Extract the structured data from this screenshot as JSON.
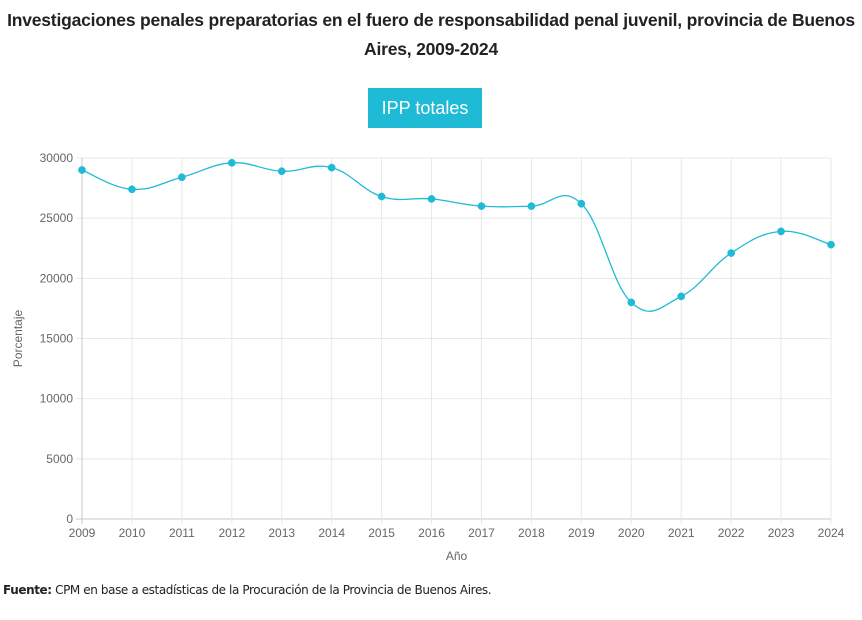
{
  "title": "Investigaciones penales preparatorias en el fuero de responsabilidad penal juvenil, provincia de Buenos Aires, 2009-2024",
  "legend": {
    "label": "IPP totales"
  },
  "footer": {
    "label": "Fuente:",
    "text": " CPM en base a estadísticas de la Procuración de la Provincia de Buenos Aires."
  },
  "chart_data": {
    "type": "line",
    "title": "Investigaciones penales preparatorias en el fuero de responsabilidad penal juvenil, provincia de Buenos Aires, 2009-2024",
    "xlabel": "Año",
    "ylabel": "Porcentaje",
    "categories": [
      "2009",
      "2010",
      "2011",
      "2012",
      "2013",
      "2014",
      "2015",
      "2016",
      "2017",
      "2018",
      "2019",
      "2020",
      "2021",
      "2022",
      "2023",
      "2024"
    ],
    "series": [
      {
        "name": "IPP totales",
        "color": "#1ebad6",
        "values": [
          29000,
          27400,
          28400,
          29600,
          28900,
          29200,
          26800,
          26600,
          26000,
          26000,
          26200,
          18000,
          18500,
          22100,
          23900,
          22800
        ]
      }
    ],
    "ylim": [
      0,
      30000
    ],
    "yticks": [
      0,
      5000,
      10000,
      15000,
      20000,
      25000,
      30000
    ],
    "grid": true,
    "legend": "top-center",
    "smooth": true
  }
}
